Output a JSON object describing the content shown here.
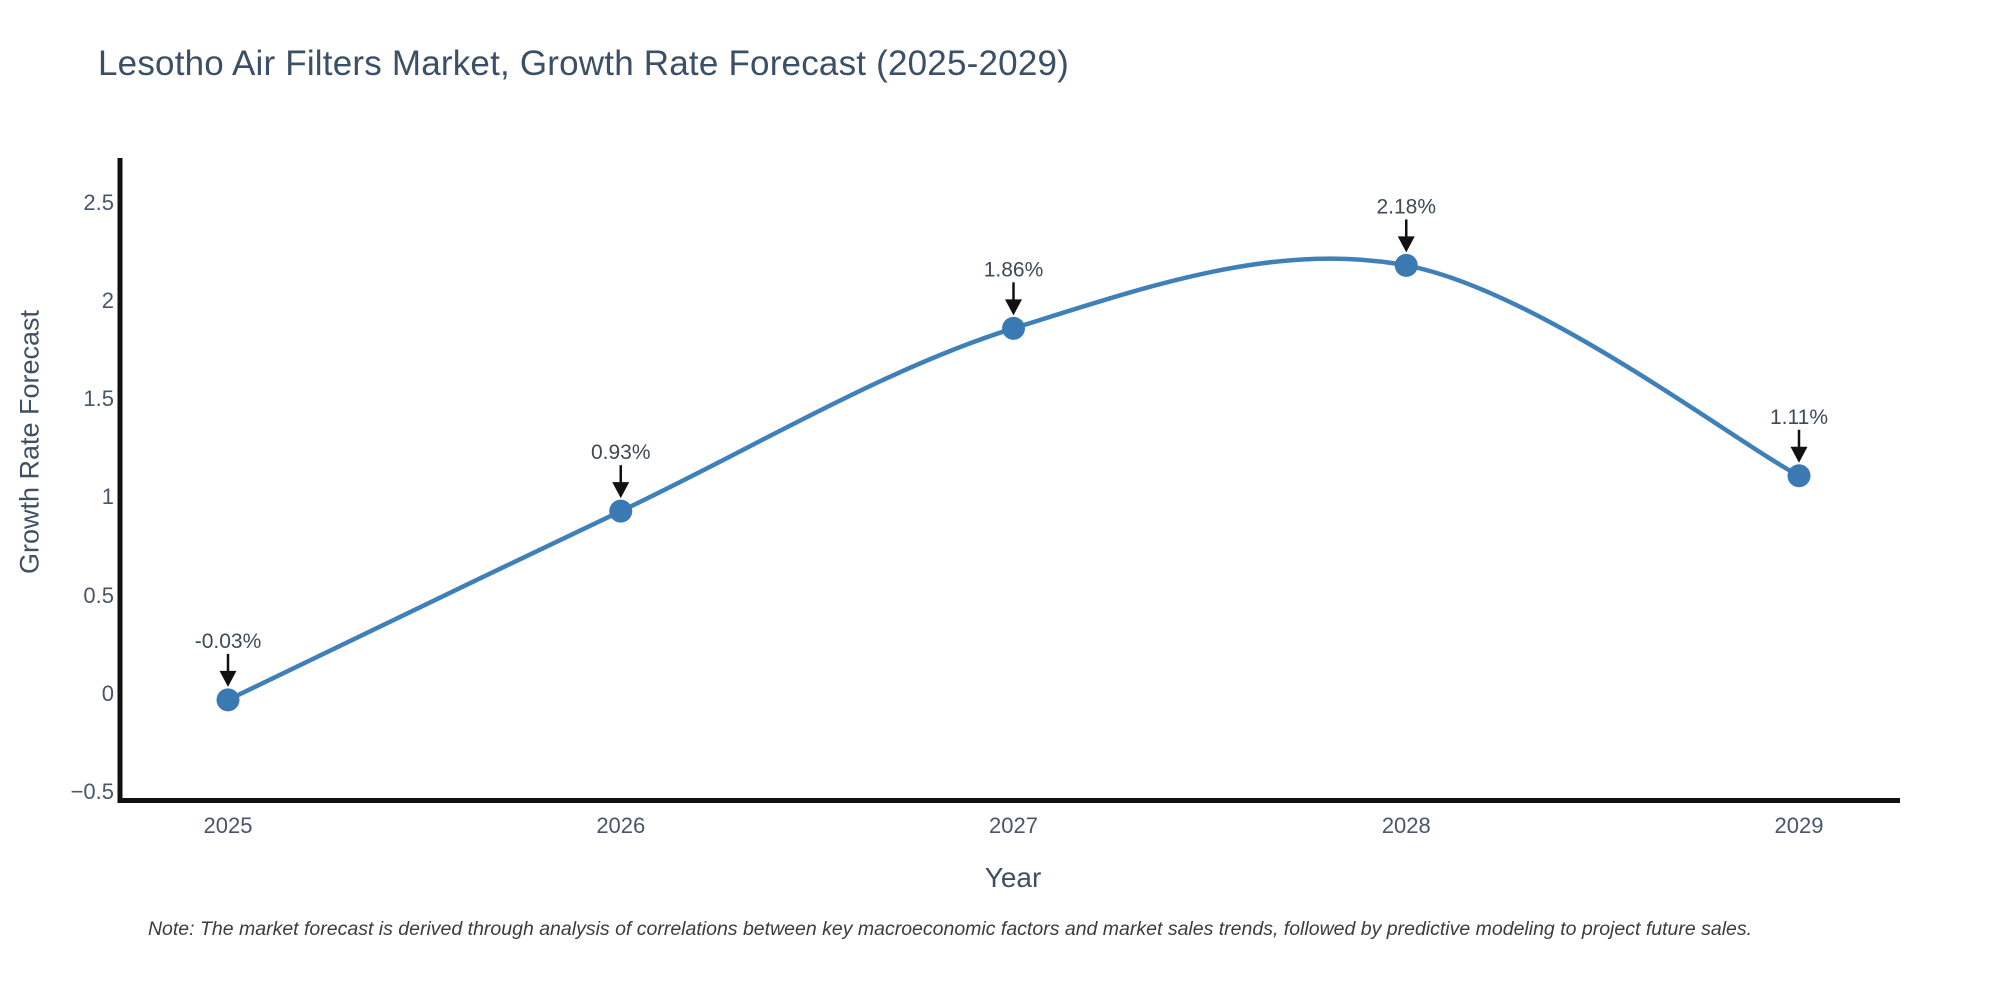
{
  "title": "Lesotho Air Filters Market, Growth Rate Forecast (2025-2029)",
  "note": "Note: The market forecast is derived through analysis of correlations between key macroeconomic factors and market sales trends, followed by predictive modeling to project future sales.",
  "chart_data": {
    "type": "line",
    "line_shape": "spline",
    "x": [
      2025,
      2026,
      2027,
      2028,
      2029
    ],
    "values": [
      -0.03,
      0.93,
      1.86,
      2.18,
      1.11
    ],
    "point_labels": [
      "-0.03%",
      "0.93%",
      "1.86%",
      "2.18%",
      "1.11%"
    ],
    "series_name": "Growth Rate Forecast",
    "title": "Lesotho Air Filters Market, Growth Rate Forecast (2025-2029)",
    "xlabel": "Year",
    "ylabel": "Growth Rate Forecast",
    "x_tick_labels": [
      "2025",
      "2026",
      "2027",
      "2028",
      "2029"
    ],
    "y_ticks": [
      -0.5,
      0,
      0.5,
      1,
      1.5,
      2,
      2.5
    ],
    "y_tick_labels": [
      "−0.5",
      "0",
      "0.5",
      "1",
      "1.5",
      "2",
      "2.5"
    ],
    "ylim": [
      -0.55,
      2.75
    ],
    "grid": false,
    "legend": "none",
    "annotations_have_arrows": true,
    "colors": {
      "line": "#4080b8",
      "marker": "#3b79b3",
      "arrow": "#111111",
      "axis": "#111111",
      "title_text": "#3b4f66",
      "tick_text": "#47566a",
      "annotation_text": "#3d4a57",
      "note_text": "#3c3c3c"
    }
  }
}
